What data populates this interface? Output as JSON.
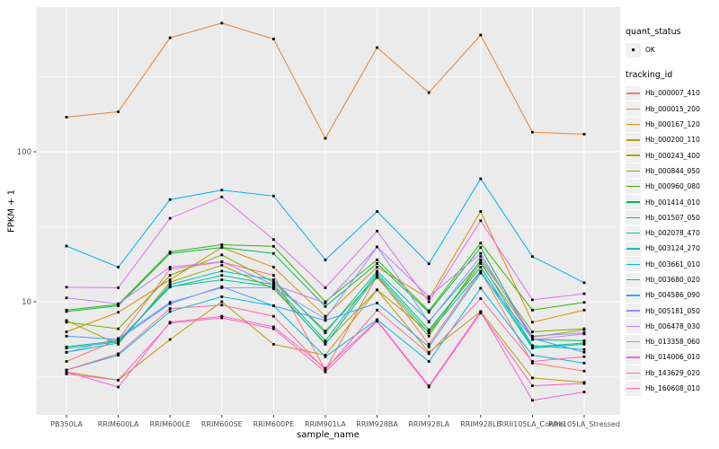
{
  "chart_data": {
    "type": "line",
    "title": "",
    "xlabel": "sample_name",
    "ylabel": "FPKM + 1",
    "y_scale": "log10",
    "y_major_ticks": [
      {
        "value": 10,
        "label": "10"
      },
      {
        "value": 100,
        "label": "100"
      }
    ],
    "y_minor_ticks": [
      3.162,
      31.62,
      316.2
    ],
    "ylim_px_reference": "y=336 is value 10, 167px per decade",
    "grid": true,
    "legend_position": "right",
    "categories": [
      "PB350LA",
      "RRIM600LA",
      "RRIM600LE",
      "RRIM600SE",
      "RRIM600PE",
      "RRIM901LA",
      "RRIM928BA",
      "RRIM928LA",
      "RRIM928LE",
      "RRII105LA_Control",
      "RRII105LA_Stressed"
    ],
    "series": [
      {
        "name": "Hb_000007_410",
        "color": "#F8766D",
        "values": [
          4.0,
          5.6,
          16.5,
          18.4,
          15.0,
          3.5,
          15.0,
          5.2,
          16.0,
          3.9,
          3.45
        ]
      },
      {
        "name": "Hb_000015_200",
        "color": "#EA8331",
        "values": [
          170,
          185,
          575,
          720,
          565,
          123,
          495,
          248,
          600,
          135,
          131
        ]
      },
      {
        "name": "Hb_000167_120",
        "color": "#D89000",
        "values": [
          6.3,
          8.5,
          14.0,
          23.0,
          17.0,
          8.0,
          17.0,
          10.5,
          40.0,
          7.3,
          8.8
        ]
      },
      {
        "name": "Hb_000200_110",
        "color": "#C09B00",
        "values": [
          3.4,
          3.0,
          5.6,
          10.0,
          5.2,
          4.4,
          12.0,
          4.6,
          8.6,
          3.1,
          2.9
        ]
      },
      {
        "name": "Hb_000243_400",
        "color": "#A3A500",
        "values": [
          7.5,
          5.2,
          13.5,
          17.5,
          12.2,
          5.3,
          12.0,
          6.3,
          18.0,
          5.8,
          6.5
        ]
      },
      {
        "name": "Hb_000844_050",
        "color": "#7CAE00",
        "values": [
          7.3,
          6.6,
          15.0,
          20.5,
          13.5,
          6.4,
          14.5,
          5.9,
          19.0,
          6.3,
          6.6
        ]
      },
      {
        "name": "Hb_000960_080",
        "color": "#39B600",
        "values": [
          8.8,
          9.6,
          21.5,
          24.0,
          23.4,
          10.0,
          19.0,
          8.7,
          24.6,
          8.8,
          9.9
        ]
      },
      {
        "name": "Hb_001414_010",
        "color": "#00BB4E",
        "values": [
          8.6,
          9.4,
          21.0,
          23.0,
          21.0,
          9.3,
          18.0,
          8.5,
          23.0,
          5.6,
          5.5
        ]
      },
      {
        "name": "Hb_001507_050",
        "color": "#00C087",
        "values": [
          5.0,
          5.5,
          12.5,
          15.0,
          13.0,
          5.5,
          15.5,
          6.5,
          17.0,
          5.0,
          5.3
        ]
      },
      {
        "name": "Hb_002078_470",
        "color": "#00C1A3",
        "values": [
          4.9,
          5.4,
          12.6,
          14.0,
          12.6,
          5.2,
          15.0,
          6.2,
          16.0,
          4.9,
          5.2
        ]
      },
      {
        "name": "Hb_003124_270",
        "color": "#00BFC4",
        "values": [
          4.6,
          5.3,
          13.0,
          16.0,
          14.0,
          6.2,
          16.0,
          7.4,
          18.5,
          5.1,
          4.8
        ]
      },
      {
        "name": "Hb_003661_010",
        "color": "#00BAE0",
        "values": [
          3.5,
          4.4,
          8.6,
          10.8,
          9.4,
          4.3,
          7.6,
          4.0,
          12.3,
          4.4,
          3.9
        ]
      },
      {
        "name": "Hb_003680_020",
        "color": "#00B0F6",
        "values": [
          23.5,
          17.0,
          48.0,
          55.5,
          50.7,
          19.0,
          40.0,
          17.9,
          66.0,
          20.0,
          13.4
        ]
      },
      {
        "name": "Hb_004586_090",
        "color": "#35A2FF",
        "values": [
          5.9,
          5.6,
          9.7,
          12.6,
          9.4,
          7.5,
          9.8,
          5.0,
          15.5,
          5.7,
          4.6
        ]
      },
      {
        "name": "Hb_005181_050",
        "color": "#9590FF",
        "values": [
          4.6,
          5.7,
          9.9,
          12.4,
          12.4,
          7.7,
          23.2,
          7.3,
          20.0,
          5.9,
          6.2
        ]
      },
      {
        "name": "Hb_006478_030",
        "color": "#C77CFF",
        "values": [
          10.6,
          9.7,
          17.0,
          18.5,
          13.0,
          9.8,
          23.2,
          10.8,
          21.0,
          5.6,
          6.1
        ]
      },
      {
        "name": "Hb_013358_060",
        "color": "#E76BF3",
        "values": [
          12.5,
          12.4,
          36.0,
          50.0,
          26.0,
          12.4,
          29.6,
          10.0,
          34.7,
          10.3,
          11.3
        ]
      },
      {
        "name": "Hb_014006_010",
        "color": "#FA62DB",
        "values": [
          3.4,
          2.7,
          7.3,
          8.0,
          6.8,
          3.6,
          7.5,
          2.75,
          8.6,
          2.2,
          2.5
        ]
      },
      {
        "name": "Hb_143629_020",
        "color": "#FF62BC",
        "values": [
          3.3,
          3.0,
          7.2,
          7.8,
          6.6,
          3.4,
          7.4,
          2.7,
          8.4,
          2.75,
          2.85
        ]
      },
      {
        "name": "Hb_160608_010",
        "color": "#FF6A98",
        "values": [
          3.5,
          4.5,
          9.0,
          9.5,
          8.0,
          3.5,
          8.8,
          4.5,
          10.5,
          4.0,
          4.3
        ]
      }
    ],
    "legend": {
      "quant_status_title": "quant_status",
      "quant_status_items": [
        {
          "label": "OK",
          "marker": "black-point"
        }
      ],
      "tracking_id_title": "tracking_id"
    },
    "colors": {
      "panel_bg": "#EBEBEB",
      "grid": "#FFFFFF",
      "point": "#000000",
      "tick": "#333333",
      "tick_label": "#4D4D4D",
      "legend_key_bg": "#F0F0F0"
    }
  }
}
